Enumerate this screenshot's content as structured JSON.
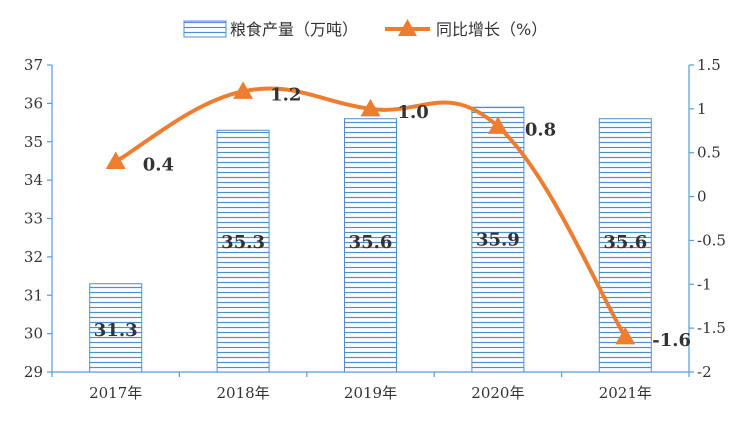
{
  "chart_data": {
    "type": "bar",
    "categories": [
      "2017年",
      "2018年",
      "2019年",
      "2020年",
      "2021年"
    ],
    "series": [
      {
        "name": "粮食产量（万吨）",
        "type": "bar",
        "axis": "left",
        "values": [
          31.3,
          35.3,
          35.6,
          35.9,
          35.6
        ]
      },
      {
        "name": "同比增长（%）",
        "type": "line",
        "axis": "right",
        "values": [
          0.4,
          1.2,
          1.0,
          0.8,
          -1.6
        ]
      }
    ],
    "left_axis": {
      "min": 29,
      "max": 37,
      "step": 1
    },
    "right_axis": {
      "min": -2,
      "max": 1.5,
      "step": 0.5,
      "tick_labels": [
        "-2",
        "-1.5",
        "-1",
        "-0.5",
        "0",
        "0.5",
        "1",
        "1.5"
      ]
    },
    "bar_labels": [
      "31.3",
      "35.3",
      "35.6",
      "35.9",
      "35.6"
    ],
    "line_labels": [
      "0.4",
      "1.2",
      "1.0",
      "0.8",
      "-1.6"
    ],
    "legend": {
      "position": "top"
    },
    "colors": {
      "bar_stroke": "#4F8FD0",
      "bar_hatch": "#4F8FD0",
      "line": "#ED7D31",
      "axis": "#5B9BD5",
      "negative_label": "#FF0000"
    },
    "grid": false
  }
}
